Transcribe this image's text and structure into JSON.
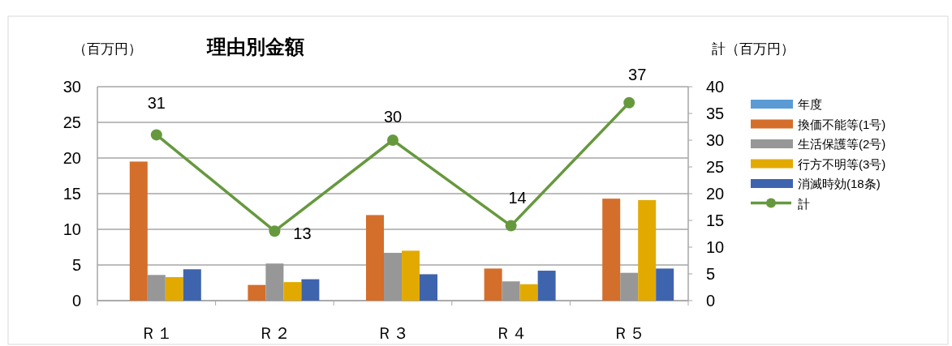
{
  "chart_data": {
    "type": "bar",
    "title": "理由別金額",
    "ylabel": "（百万円）",
    "y2label": "計（百万円）",
    "categories": [
      "Ｒ１",
      "Ｒ２",
      "Ｒ３",
      "Ｒ４",
      "Ｒ５"
    ],
    "series": [
      {
        "name": "年度",
        "color": "#5b9bd5",
        "values": [
          null,
          null,
          null,
          null,
          null
        ]
      },
      {
        "name": "換価不能等(1号)",
        "color": "#d46e2b",
        "values": [
          19.5,
          2.2,
          12.0,
          4.5,
          14.3
        ]
      },
      {
        "name": "生活保護等(2号)",
        "color": "#979797",
        "values": [
          3.6,
          5.2,
          6.7,
          2.7,
          3.9
        ]
      },
      {
        "name": "行方不明等(3号)",
        "color": "#e2aa00",
        "values": [
          3.3,
          2.6,
          7.0,
          2.3,
          14.1
        ]
      },
      {
        "name": "消滅時効(18条)",
        "color": "#3f64ae",
        "values": [
          4.4,
          3.0,
          3.7,
          4.2,
          4.5
        ]
      },
      {
        "name": "計",
        "type": "line",
        "axis": "y2",
        "color": "#66993e",
        "marker": "circle",
        "values": [
          31,
          13,
          30,
          14,
          37
        ],
        "value_labels": [
          "31",
          "13",
          "30",
          "14",
          "37"
        ]
      }
    ],
    "ylim": [
      0,
      30
    ],
    "yticks": [
      0,
      5,
      10,
      15,
      20,
      25,
      30
    ],
    "y2lim": [
      0,
      40
    ],
    "y2ticks": [
      0,
      5,
      10,
      15,
      20,
      25,
      30,
      35,
      40
    ],
    "grid": "y",
    "legend": "right"
  }
}
